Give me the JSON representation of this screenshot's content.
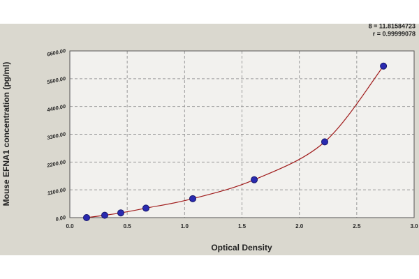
{
  "chart_data": {
    "type": "scatter",
    "x_label": "Optical Density",
    "y_label": "Mouse EFNA1 concentration (pg/ml)",
    "annotations": [
      "8 = 11.81584723",
      "r = 0.99999078"
    ],
    "x": [
      0.146,
      0.304,
      0.444,
      0.663,
      1.071,
      1.607,
      2.221,
      2.733
    ],
    "values": [
      0,
      93.75,
      187.5,
      375,
      750,
      1500,
      3000,
      6000
    ],
    "color": "#2a2ab0",
    "curve_color": "#a01c1c",
    "xlim": [
      0,
      3
    ],
    "ylim": [
      0,
      6600
    ],
    "xticks": [
      {
        "value": 0,
        "label": "0.0"
      },
      0.5,
      {
        "value": 1,
        "label": "1.0"
      },
      1.5,
      {
        "value": 2,
        "label": "2.0"
      },
      2.5,
      {
        "value": 3,
        "label": "3.0"
      }
    ],
    "yticks": [
      {
        "value": 0,
        "label": "0.00"
      },
      {
        "value": 1100,
        "label": "1100.00"
      },
      {
        "value": 2200,
        "label": "2200.00"
      },
      {
        "value": 3300,
        "label": "3300.00"
      },
      {
        "value": 4400,
        "label": "4400.00"
      },
      {
        "value": 5500,
        "label": "5500.00"
      },
      {
        "value": 6600,
        "label": "6600.00"
      }
    ],
    "grid": true
  }
}
